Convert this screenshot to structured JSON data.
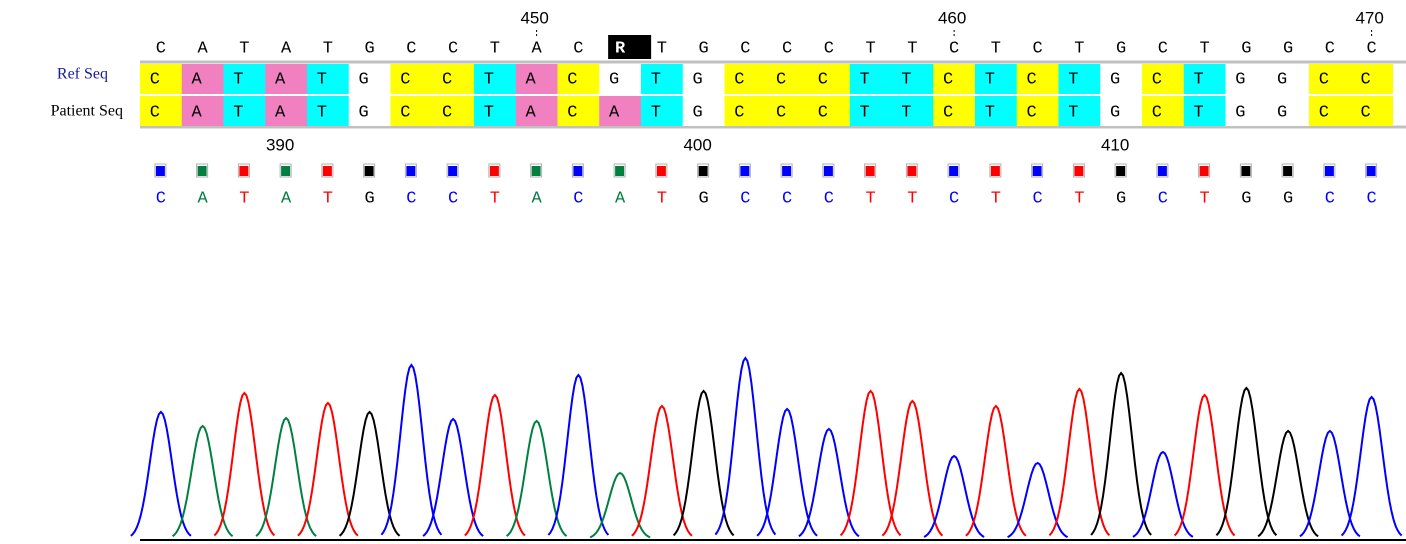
{
  "labels": {
    "ref": "Ref Seq",
    "patient": "Patient Seq"
  },
  "top_numbers": [
    null,
    null,
    null,
    null,
    null,
    null,
    null,
    null,
    null,
    450,
    null,
    null,
    null,
    null,
    null,
    null,
    null,
    null,
    null,
    460,
    null,
    null,
    null,
    null,
    null,
    null,
    null,
    null,
    null,
    470
  ],
  "consensus": [
    "C",
    "A",
    "T",
    "A",
    "T",
    "G",
    "C",
    "C",
    "T",
    "A",
    "C",
    "R",
    "T",
    "G",
    "C",
    "C",
    "C",
    "T",
    "T",
    "C",
    "T",
    "C",
    "T",
    "G",
    "C",
    "T",
    "G",
    "G",
    "C",
    "C"
  ],
  "ref_seq": [
    "C",
    "A",
    "T",
    "A",
    "T",
    "G",
    "C",
    "C",
    "T",
    "A",
    "C",
    "G",
    "T",
    "G",
    "C",
    "C",
    "C",
    "T",
    "T",
    "C",
    "T",
    "C",
    "T",
    "G",
    "C",
    "T",
    "G",
    "G",
    "C",
    "C"
  ],
  "patient_seq": [
    "C",
    "A",
    "T",
    "A",
    "T",
    "G",
    "C",
    "C",
    "T",
    "A",
    "C",
    "A",
    "T",
    "G",
    "C",
    "C",
    "C",
    "T",
    "T",
    "C",
    "T",
    "C",
    "T",
    "G",
    "C",
    "T",
    "G",
    "G",
    "C",
    "C"
  ],
  "bottom_numbers": [
    null,
    null,
    null,
    390,
    null,
    null,
    null,
    null,
    null,
    null,
    null,
    null,
    null,
    400,
    null,
    null,
    null,
    null,
    null,
    null,
    null,
    null,
    null,
    410,
    null,
    null,
    null,
    null,
    null,
    null
  ],
  "base_calls": [
    "C",
    "A",
    "T",
    "A",
    "T",
    "G",
    "C",
    "C",
    "T",
    "A",
    "C",
    "A",
    "T",
    "G",
    "C",
    "C",
    "C",
    "T",
    "T",
    "C",
    "T",
    "C",
    "T",
    "G",
    "C",
    "T",
    "G",
    "G",
    "C",
    "C"
  ],
  "peak_heights": [
    127,
    113,
    146,
    121,
    136,
    127,
    174,
    120,
    144,
    118,
    164,
    66,
    133,
    148,
    181,
    130,
    110,
    148,
    138,
    83,
    133,
    76,
    150,
    166,
    87,
    144,
    151,
    108,
    108,
    142
  ],
  "cell_colors": {
    "C": "#ffff00",
    "A": "#f080c0",
    "T": "#00ffff",
    "G": "#ffffff"
  },
  "base_colors": {
    "C": "#0000ff",
    "A": "#008040",
    "T": "#ff0000",
    "G": "#000000"
  }
}
